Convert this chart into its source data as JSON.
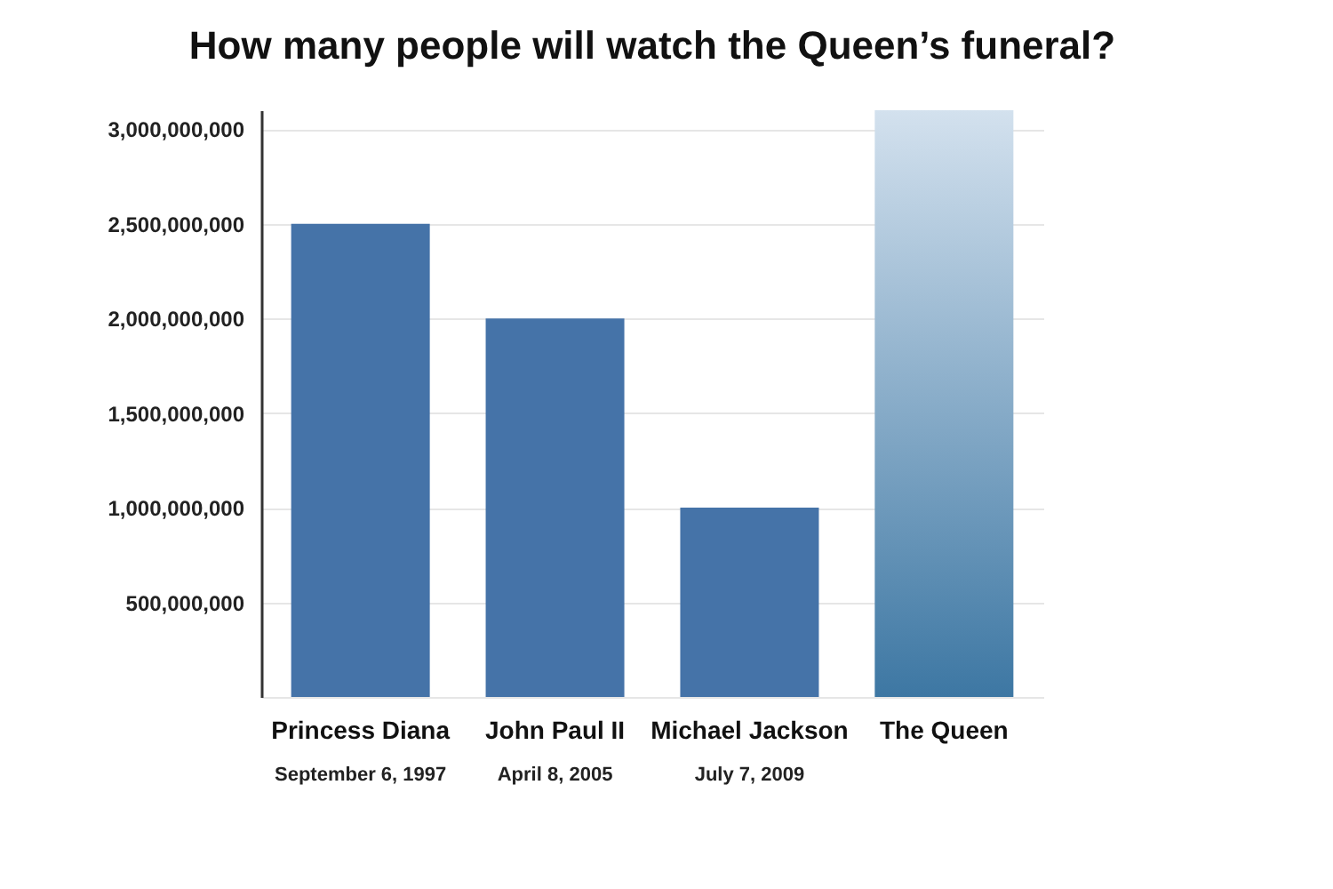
{
  "chart_data": {
    "type": "bar",
    "title": "How many people will watch the Queen’s funeral?",
    "categories": [
      "Princess Diana",
      "John Paul II",
      "Michael Jackson",
      "The Queen"
    ],
    "values": [
      2500000000,
      2000000000,
      1000000000,
      3100000000
    ],
    "colors": [
      "#4573a8",
      "#4573a8",
      "#4573a8",
      "#3d77a3"
    ],
    "ylim": [
      0,
      3100000000
    ],
    "yticks": [
      {
        "value": 0,
        "label": null
      },
      {
        "value": 500000000,
        "label": "500,000,000"
      },
      {
        "value": 1000000000,
        "label": "1,000,000,000"
      },
      {
        "value": 1500000000,
        "label": "1,500,000,000"
      },
      {
        "value": 2000000000,
        "label": "2,000,000,000"
      },
      {
        "value": 2500000000,
        "label": "2,500,000,000"
      },
      {
        "value": 3000000000,
        "label": "3,000,000,000"
      }
    ],
    "grid": "y",
    "annotations": [
      "September 6, 1997",
      "April 8, 2005",
      "July 7, 2009"
    ]
  }
}
